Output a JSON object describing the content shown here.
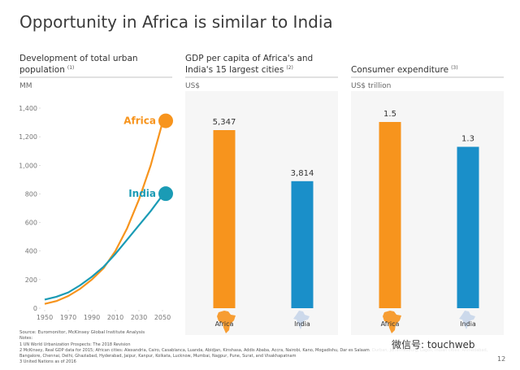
{
  "title": "Opportunity in Africa is similar to India",
  "chart_data": [
    {
      "type": "line",
      "title": "Development of total urban population",
      "note_ref": "(1)",
      "unit": "MM",
      "x": [
        1950,
        1960,
        1970,
        1980,
        1990,
        2000,
        2010,
        2020,
        2030,
        2040,
        2050
      ],
      "xlim": [
        1950,
        2050
      ],
      "xticks": [
        1950,
        1970,
        1990,
        2010,
        2030,
        2050
      ],
      "ylim": [
        0,
        1400
      ],
      "yticks": [
        0,
        200,
        400,
        600,
        800,
        {
          "value": 1000,
          "label": "1,000"
        },
        {
          "value": 1200,
          "label": "1,200"
        },
        {
          "value": 1400,
          "label": "1,400"
        }
      ],
      "series": [
        {
          "name": "Africa",
          "color": "#f7941d",
          "values": [
            30,
            50,
            85,
            135,
            200,
            280,
            400,
            560,
            760,
            1000,
            1300
          ]
        },
        {
          "name": "India",
          "color": "#1a9bb5",
          "values": [
            60,
            80,
            110,
            160,
            220,
            290,
            380,
            480,
            580,
            680,
            790
          ]
        }
      ]
    },
    {
      "type": "bar",
      "title": "GDP per capita of Africa's and India's 15 largest cities",
      "note_ref": "(2)",
      "unit": "US$",
      "categories": [
        "Africa",
        "India"
      ],
      "values": [
        5347,
        3814
      ],
      "value_labels": [
        "5,347",
        "3,814"
      ],
      "colors": [
        "#f7941d",
        "#1a8fc9"
      ]
    },
    {
      "type": "bar",
      "title": "Consumer expenditure",
      "note_ref": "(3)",
      "unit": "US$ trillion",
      "categories": [
        "Africa",
        "India"
      ],
      "values": [
        1.5,
        1.3
      ],
      "colors": [
        "#f7941d",
        "#1a8fc9"
      ]
    }
  ],
  "source": "Source: Euromonitor, McKinsey Global Institute Analysis",
  "notes_heading": "Notes:",
  "notes": [
    "1   UN World Urbanization Prospects: The 2018 Revision",
    "2   McKinsey, Real GDP data for 2015; African cities: Alexandria, Cairo, Casablanca, Luanda, Abidjan, Kinshasa, Addis Ababa, Accra, Nairobi, Kano, Mogadishu, Dar es Salaam, Durban, Johannesburg, Lagos; Indian cities: Ahmedabad,",
    "     Bangalore, Chennai, Delhi, Ghaziabad, Hyderabad, Jaipur, Kanpur, Kolkata, Lucknow, Mumbai, Nagpur, Pune, Surat, and Visakhapatnam",
    "3   United Nations as of 2016"
  ],
  "watermark": "微信号: touchweb",
  "page_number": "12"
}
